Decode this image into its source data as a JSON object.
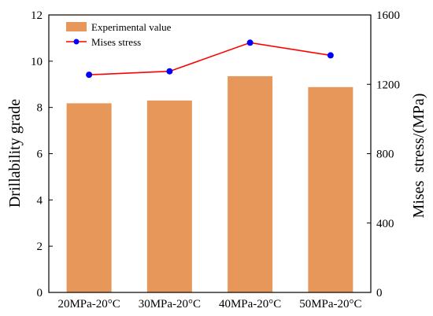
{
  "chart_data": {
    "type": "bar",
    "categories": [
      "20MPa-20°C",
      "30MPa-20°C",
      "40MPa-20°C",
      "50MPa-20°C"
    ],
    "series": [
      {
        "name": "Experimental value",
        "kind": "bar",
        "axis": "left",
        "color": "#E8975A",
        "values": [
          8.18,
          8.3,
          9.35,
          8.88
        ]
      },
      {
        "name": "Mises stress",
        "kind": "line",
        "axis": "right",
        "line_color": "#FF0000",
        "marker_color": "#0000FF",
        "values": [
          1255,
          1275,
          1440,
          1367
        ]
      }
    ],
    "ylabel": "Drillability grade",
    "y2label": "Mises  stress/(MPa)",
    "ylim": [
      0,
      12
    ],
    "y2lim": [
      0,
      1600
    ],
    "yticks": [
      "0",
      "2",
      "4",
      "6",
      "8",
      "10",
      "12"
    ],
    "y2ticks": [
      "0",
      "400",
      "800",
      "1200",
      "1600"
    ],
    "legend": "top-left",
    "grid": false
  }
}
